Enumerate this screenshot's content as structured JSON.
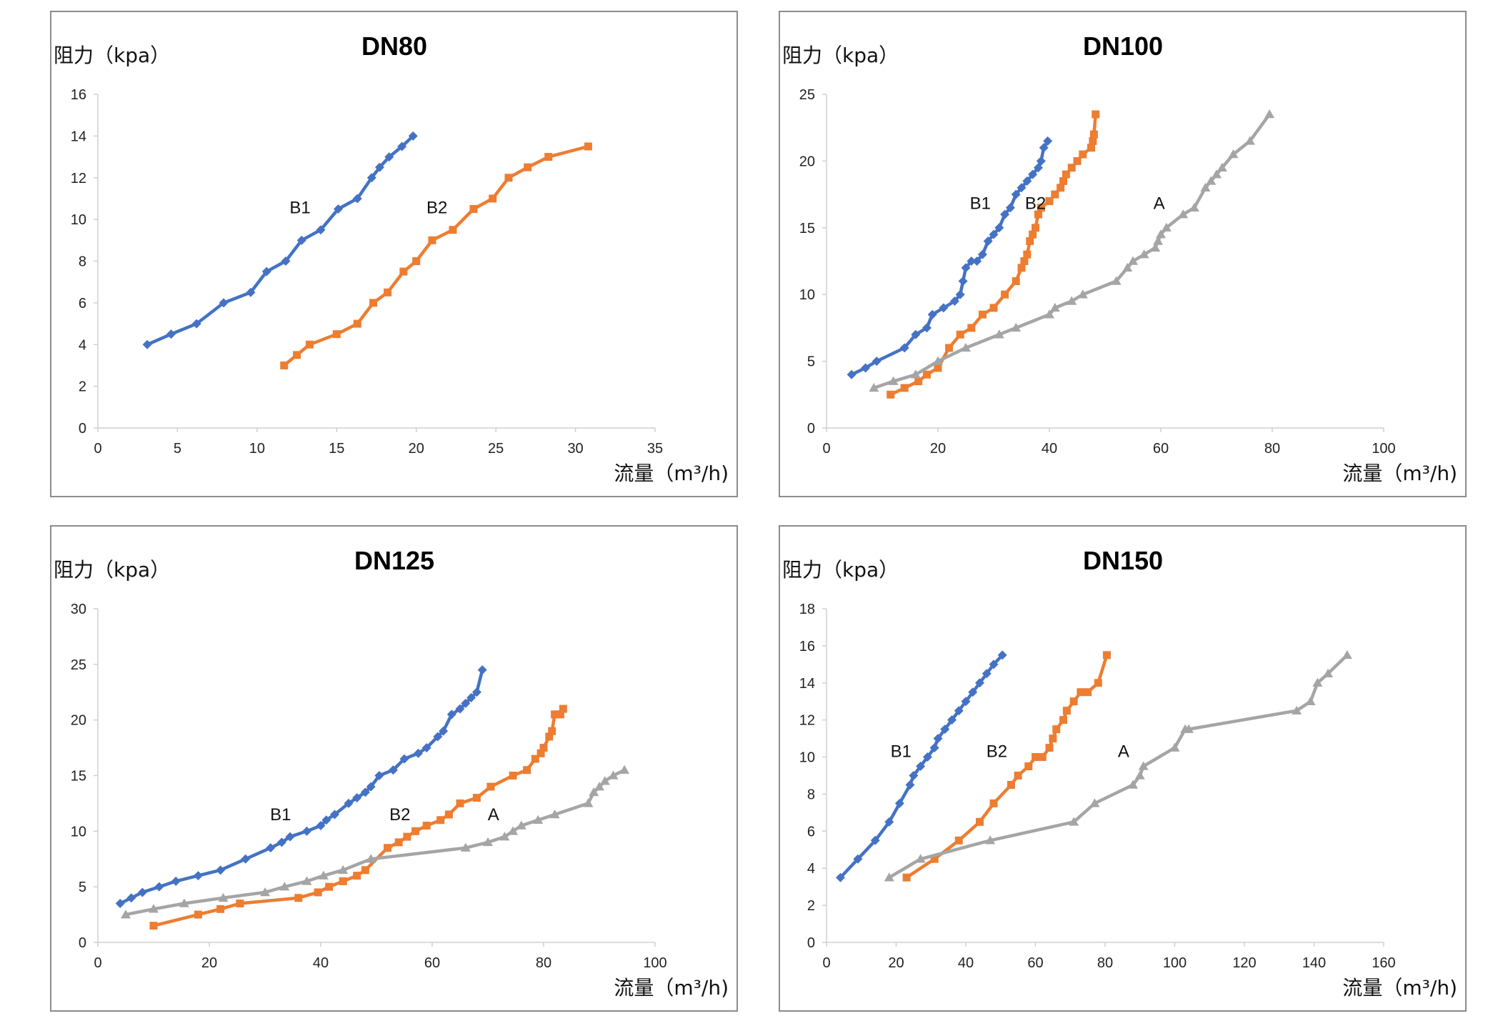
{
  "chart_data": [
    {
      "type": "line",
      "title": "DN80",
      "ylabel": "阻力（kpa）",
      "xlabel": "流量（m³/h)",
      "xlim": [
        0,
        35
      ],
      "xticks": [
        0,
        5,
        10,
        15,
        20,
        25,
        30,
        35
      ],
      "ylim": [
        0,
        16
      ],
      "yticks": [
        0,
        2,
        4,
        6,
        8,
        10,
        12,
        14,
        16
      ],
      "series": [
        {
          "name": "B1",
          "color": "#4472C4",
          "marker": "diamond",
          "x": [
            3.1,
            4.6,
            6.2,
            7.9,
            9.6,
            10.6,
            11.8,
            12.8,
            14.0,
            15.1,
            16.3,
            17.2,
            17.7,
            18.3,
            19.1,
            19.8
          ],
          "y": [
            4.0,
            4.5,
            5.0,
            6.0,
            6.5,
            7.5,
            8.0,
            9.0,
            9.5,
            10.5,
            11.0,
            12.0,
            12.5,
            13.0,
            13.5,
            14.0
          ]
        },
        {
          "name": "B2",
          "color": "#ED7D31",
          "marker": "square",
          "x": [
            11.7,
            12.5,
            13.3,
            15.0,
            16.3,
            17.3,
            18.2,
            19.2,
            20.0,
            21.0,
            22.3,
            23.6,
            24.8,
            25.8,
            27.0,
            28.3,
            30.8
          ],
          "y": [
            3.0,
            3.5,
            4.0,
            4.5,
            5.0,
            6.0,
            6.5,
            7.5,
            8.0,
            9.0,
            9.5,
            10.5,
            11.0,
            12.0,
            12.5,
            13.0,
            13.5
          ]
        }
      ],
      "annotations": [
        {
          "text": "B1",
          "x": 12.7,
          "y": 10.3
        },
        {
          "text": "B2",
          "x": 21.3,
          "y": 10.3
        }
      ]
    },
    {
      "type": "line",
      "title": "DN100",
      "ylabel": "阻力（kpa）",
      "xlabel": "流量（m³/h)",
      "xlim": [
        0,
        100
      ],
      "xticks": [
        0,
        20,
        40,
        60,
        80,
        100
      ],
      "ylim": [
        0,
        25
      ],
      "yticks": [
        0,
        5,
        10,
        15,
        20,
        25
      ],
      "series": [
        {
          "name": "B1",
          "color": "#4472C4",
          "marker": "diamond",
          "x": [
            4.5,
            7,
            9,
            14,
            16,
            18,
            19,
            21,
            23,
            24,
            24.5,
            25,
            26,
            27,
            28,
            29,
            30,
            31,
            32,
            33,
            34,
            35,
            36,
            37,
            38,
            38.5,
            39,
            39.7
          ],
          "y": [
            4.0,
            4.5,
            5.0,
            6.0,
            7.0,
            7.5,
            8.5,
            9.0,
            9.5,
            10.0,
            11.0,
            12.0,
            12.5,
            12.5,
            13.0,
            14.0,
            14.5,
            15.0,
            16.0,
            16.5,
            17.5,
            18.0,
            18.5,
            19.0,
            19.5,
            20.0,
            21.0,
            21.5
          ]
        },
        {
          "name": "B2",
          "color": "#ED7D31",
          "marker": "square",
          "x": [
            11.5,
            14,
            16.5,
            18,
            20,
            22,
            24,
            26,
            28,
            30,
            32,
            34,
            35,
            35.5,
            36,
            36.5,
            37,
            37.5,
            38,
            38.5,
            40,
            41,
            42,
            42.5,
            43,
            44,
            45,
            46,
            47.5,
            47.8,
            48,
            48.3
          ],
          "y": [
            2.5,
            3.0,
            3.5,
            4.0,
            4.5,
            6.0,
            7.0,
            7.5,
            8.5,
            9.0,
            10.0,
            11.0,
            12.0,
            12.5,
            13.0,
            14.0,
            14.5,
            15.0,
            16.0,
            16.5,
            17.0,
            17.5,
            18.0,
            18.5,
            19.0,
            19.5,
            20.0,
            20.5,
            21.0,
            21.5,
            22.0,
            23.5
          ]
        },
        {
          "name": "A",
          "color": "#A5A5A5",
          "marker": "triangle",
          "x": [
            8.5,
            12,
            16,
            20,
            25,
            31,
            34,
            40,
            41,
            44,
            46,
            52,
            54,
            55,
            57,
            59,
            59.5,
            60,
            61,
            64,
            66,
            68,
            69,
            70,
            71,
            73,
            76,
            79.5
          ],
          "y": [
            3.0,
            3.5,
            4.0,
            5.0,
            6.0,
            7.0,
            7.5,
            8.5,
            9.0,
            9.5,
            10.0,
            11.0,
            12.0,
            12.5,
            13.0,
            13.5,
            14.0,
            14.5,
            15.0,
            16.0,
            16.5,
            18.0,
            18.5,
            19.0,
            19.5,
            20.5,
            21.5,
            23.5
          ]
        }
      ],
      "annotations": [
        {
          "text": "B1",
          "x": 27.6,
          "y": 16.4
        },
        {
          "text": "B2",
          "x": 37.5,
          "y": 16.4
        },
        {
          "text": "A",
          "x": 59.7,
          "y": 16.4
        }
      ]
    },
    {
      "type": "line",
      "title": "DN125",
      "ylabel": "阻力（kpa）",
      "xlabel": "流量（m³/h)",
      "xlim": [
        0,
        100
      ],
      "xticks": [
        0,
        20,
        40,
        60,
        80,
        100
      ],
      "ylim": [
        0,
        30
      ],
      "yticks": [
        0,
        5,
        10,
        15,
        20,
        25,
        30
      ],
      "series": [
        {
          "name": "B1",
          "color": "#4472C4",
          "marker": "diamond",
          "x": [
            4,
            6,
            8,
            11,
            14,
            18,
            22,
            26.5,
            31,
            33,
            34.5,
            37.5,
            40,
            41,
            42.5,
            45,
            46.5,
            48,
            49,
            50.5,
            53,
            55,
            57.5,
            59,
            61,
            62,
            63.5,
            65,
            66,
            67,
            68,
            69
          ],
          "y": [
            3.5,
            4.0,
            4.5,
            5.0,
            5.5,
            6.0,
            6.5,
            7.5,
            8.5,
            9.0,
            9.5,
            10.0,
            10.5,
            11.0,
            11.5,
            12.5,
            13.0,
            13.5,
            14.0,
            15.0,
            15.5,
            16.5,
            17.0,
            17.5,
            18.5,
            19.0,
            20.5,
            21.0,
            21.5,
            22.0,
            22.5,
            24.5
          ]
        },
        {
          "name": "B2",
          "color": "#ED7D31",
          "marker": "square",
          "x": [
            10,
            18,
            22,
            25.5,
            36,
            39.5,
            41.5,
            44,
            46.5,
            48,
            52,
            54,
            55.5,
            57,
            59,
            61.5,
            63,
            65,
            68,
            70.5,
            74.5,
            77,
            78.5,
            79.5,
            80,
            81,
            81.5,
            82,
            82.5,
            83,
            83.5
          ],
          "y": [
            1.5,
            2.5,
            3.0,
            3.5,
            4.0,
            4.5,
            5.0,
            5.5,
            6.0,
            6.5,
            8.5,
            9.0,
            9.5,
            10.0,
            10.5,
            11.0,
            11.5,
            12.5,
            13.0,
            14.0,
            15.0,
            15.5,
            16.5,
            17.0,
            17.5,
            18.5,
            19.0,
            20.5,
            20.5,
            20.5,
            21.0
          ]
        },
        {
          "name": "A",
          "color": "#A5A5A5",
          "marker": "triangle",
          "x": [
            5,
            10,
            15.5,
            22.5,
            30,
            33.5,
            37.5,
            40.5,
            44,
            49,
            66,
            70,
            73,
            74.5,
            76,
            79,
            82,
            88,
            89,
            90,
            91,
            92.5,
            94.5
          ],
          "y": [
            2.5,
            3.0,
            3.5,
            4.0,
            4.5,
            5.0,
            5.5,
            6.0,
            6.5,
            7.5,
            8.5,
            9.0,
            9.5,
            10.0,
            10.5,
            11.0,
            11.5,
            12.5,
            13.5,
            14.0,
            14.5,
            15.0,
            15.5
          ]
        }
      ],
      "annotations": [
        {
          "text": "B1",
          "x": 32.8,
          "y": 11.0
        },
        {
          "text": "B2",
          "x": 54.2,
          "y": 11.0
        },
        {
          "text": "A",
          "x": 71.0,
          "y": 11.0
        }
      ]
    },
    {
      "type": "line",
      "title": "DN150",
      "ylabel": "阻力（kpa）",
      "xlabel": "流量（m³/h)",
      "xlim": [
        0,
        160
      ],
      "xticks": [
        0,
        20,
        40,
        60,
        80,
        100,
        120,
        140,
        160
      ],
      "ylim": [
        0,
        18
      ],
      "yticks": [
        0,
        2,
        4,
        6,
        8,
        10,
        12,
        14,
        16,
        18
      ],
      "series": [
        {
          "name": "B1",
          "color": "#4472C4",
          "marker": "diamond",
          "x": [
            4,
            9,
            14,
            18,
            21,
            24,
            25,
            27,
            29,
            31,
            32,
            34,
            36,
            38,
            40,
            42,
            44,
            46,
            48,
            50.5
          ],
          "y": [
            3.5,
            4.5,
            5.5,
            6.5,
            7.5,
            8.5,
            9.0,
            9.5,
            10.0,
            10.5,
            11.0,
            11.5,
            12.0,
            12.5,
            13.0,
            13.5,
            14.0,
            14.5,
            15.0,
            15.5
          ]
        },
        {
          "name": "B2",
          "color": "#ED7D31",
          "marker": "square",
          "x": [
            23,
            31,
            38,
            44,
            48,
            53,
            55,
            58,
            60,
            62,
            64,
            65,
            66,
            68,
            69,
            71,
            73,
            75,
            78,
            80.5
          ],
          "y": [
            3.5,
            4.5,
            5.5,
            6.5,
            7.5,
            8.5,
            9.0,
            9.5,
            10.0,
            10.0,
            10.5,
            11.0,
            11.5,
            12.0,
            12.5,
            13.0,
            13.5,
            13.5,
            14.0,
            15.5
          ]
        },
        {
          "name": "A",
          "color": "#A5A5A5",
          "marker": "triangle",
          "x": [
            18,
            27,
            47,
            71,
            77,
            88,
            90,
            91,
            100,
            103,
            104,
            135,
            139,
            141,
            144,
            149.5
          ],
          "y": [
            3.5,
            4.5,
            5.5,
            6.5,
            7.5,
            8.5,
            9.0,
            9.5,
            10.5,
            11.5,
            11.5,
            12.5,
            13.0,
            14.0,
            14.5,
            15.5
          ]
        }
      ],
      "annotations": [
        {
          "text": "B1",
          "x": 21.4,
          "y": 10.0
        },
        {
          "text": "B2",
          "x": 48.9,
          "y": 10.0
        },
        {
          "text": "A",
          "x": 85.3,
          "y": 10.0
        }
      ]
    }
  ]
}
